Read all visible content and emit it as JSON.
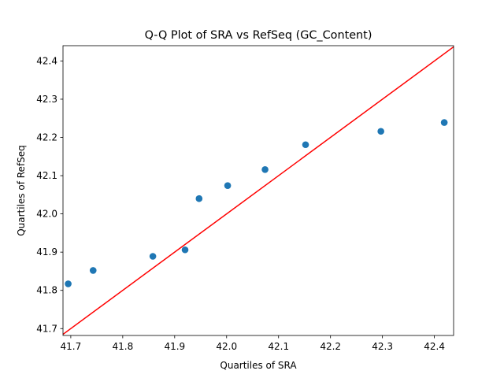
{
  "chart_data": {
    "type": "scatter",
    "title": "Q-Q Plot of SRA vs RefSeq (GC_Content)",
    "x_label": "Quartiles of SRA",
    "y_label": "Quartiles of RefSeq",
    "x": [
      41.695,
      41.743,
      41.858,
      41.92,
      41.947,
      42.002,
      42.074,
      42.152,
      42.297,
      42.419
    ],
    "series": [
      {
        "color": "#1f77b4",
        "values": [
          41.817,
          41.852,
          41.889,
          41.906,
          42.04,
          42.074,
          42.116,
          42.181,
          42.216,
          42.239
        ]
      }
    ],
    "reference_line": {
      "slope": 1,
      "intercept": 0,
      "color": "#ff0000"
    },
    "xlim": [
      41.685,
      42.437
    ],
    "ylim": [
      41.682,
      42.44
    ],
    "xticks": [
      41.7,
      41.8,
      41.9,
      {
        "value": 42,
        "label": "42.0"
      },
      42.1,
      42.2,
      42.3,
      42.4
    ],
    "yticks": [
      41.7,
      41.8,
      41.9,
      {
        "value": 42,
        "label": "42.0"
      },
      42.1,
      42.2,
      42.3,
      42.4
    ]
  }
}
